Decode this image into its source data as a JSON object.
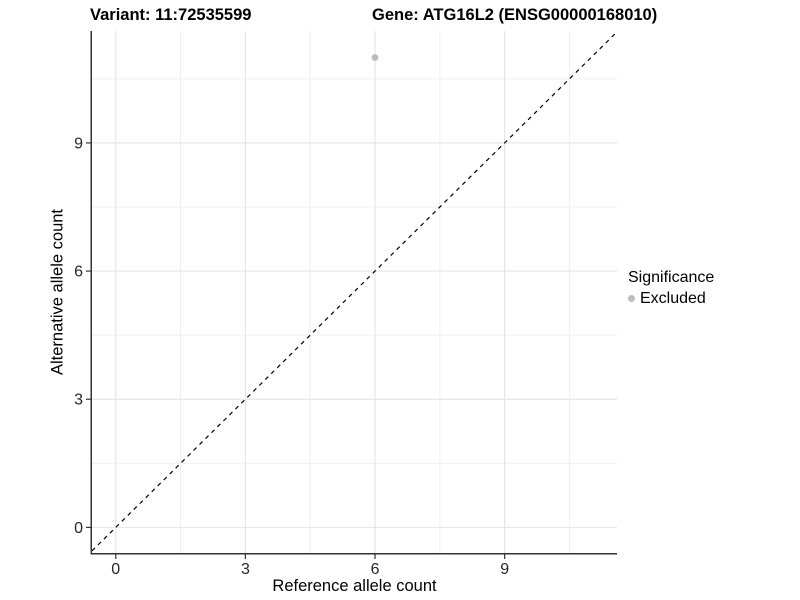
{
  "chart_data": {
    "type": "scatter",
    "titles": {
      "left": "Variant: 11:72535599",
      "right": "Gene: ATG16L2 (ENSG00000168010)"
    },
    "xlabel": "Reference allele count",
    "ylabel": "Alternative allele count",
    "xlim": [
      -0.55,
      11.6
    ],
    "ylim": [
      -0.6,
      11.62
    ],
    "x_ticks": [
      0,
      3,
      6,
      9
    ],
    "y_ticks": [
      0,
      3,
      6,
      9
    ],
    "x_minor_ticks": [
      1.5,
      4.5,
      7.5,
      10.5
    ],
    "y_minor_ticks": [
      1.5,
      4.5,
      7.5,
      10.5
    ],
    "grid": {
      "show": true,
      "major_color": "#e4e4e4",
      "minor_color": "#efefef",
      "background": "#ffffff"
    },
    "axis": {
      "line_color": "#333333",
      "tick_color": "#333333",
      "tick_label_color": "#262626",
      "tick_label_size": 16
    },
    "identity_line": {
      "slope": 1,
      "intercept": 0,
      "style": "dashed",
      "color": "#000000"
    },
    "series": [
      {
        "name": "Excluded",
        "color": "#bdbdbd",
        "marker": "circle",
        "points": [
          {
            "x": 6,
            "y": 11
          }
        ]
      }
    ],
    "legend": {
      "title": "Significance",
      "position": "right",
      "items": [
        {
          "label": "Excluded",
          "color": "#bdbdbd",
          "marker": "circle"
        }
      ]
    }
  }
}
